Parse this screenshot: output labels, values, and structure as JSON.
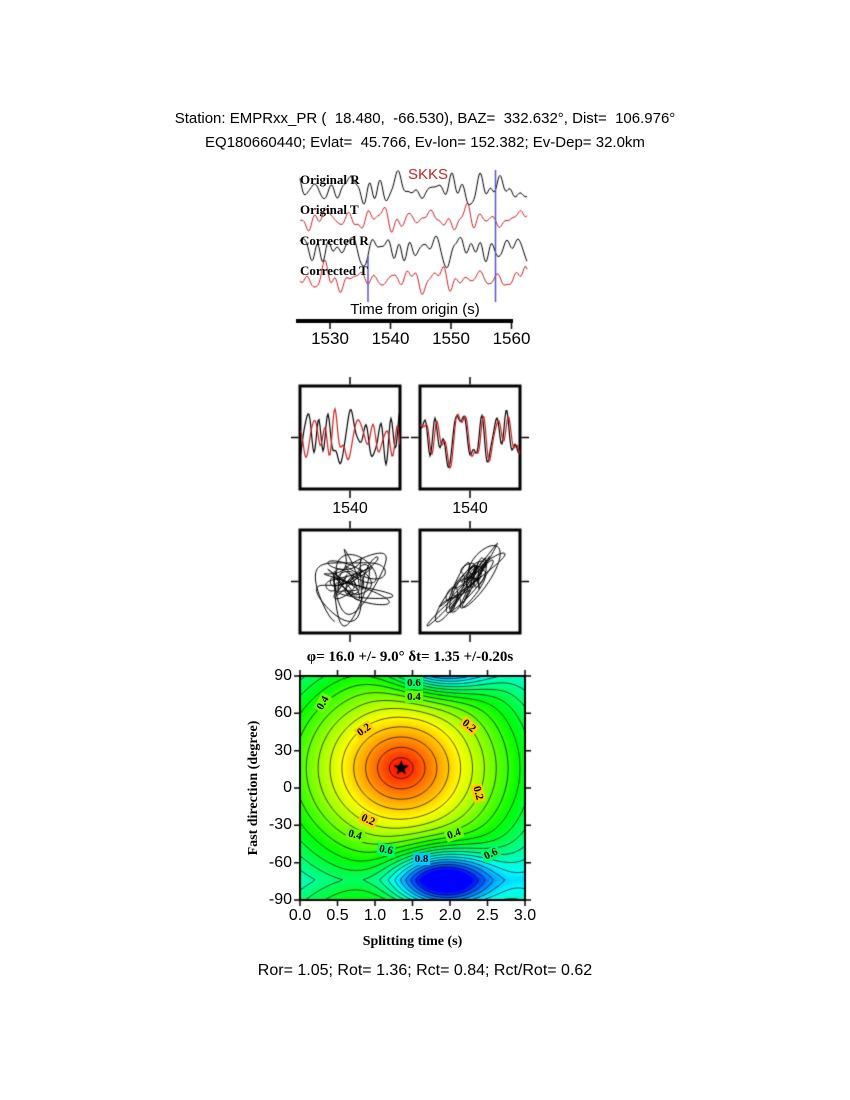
{
  "header": {
    "line1": "Station: EMPRxx_PR (  18.480,  -66.530), BAZ=  332.632°, Dist=  106.976°",
    "line2": "EQ180660440; Evlat=  45.766, Ev-lon= 152.382; Ev-Dep= 32.0km"
  },
  "phase_label": "SKKS",
  "trace_labels": [
    "Original R",
    "Original T",
    "Corrected R",
    "Corrected T"
  ],
  "time_axis": {
    "label": "Time from origin (s)",
    "ticks": [
      "1530",
      "1540",
      "1550",
      "1560"
    ]
  },
  "window_labels": [
    "1540",
    "1540"
  ],
  "contour": {
    "title": "φ= 16.0 +/- 9.0° δt= 1.35 +/-0.20s",
    "xlabel": "Splitting time (s)",
    "ylabel": "Fast direction (degree)",
    "x_ticks": [
      "0.0",
      "0.5",
      "1.0",
      "1.5",
      "2.0",
      "2.5",
      "3.0"
    ],
    "y_ticks": [
      "90",
      "60",
      "30",
      "0",
      "-30",
      "-60",
      "-90"
    ],
    "inline_labels": [
      {
        "text": "0.4",
        "x": 0.3,
        "phi": 68,
        "rot": -60
      },
      {
        "text": "0.6",
        "x": 1.52,
        "phi": 84,
        "rot": 0
      },
      {
        "text": "0.4",
        "x": 1.52,
        "phi": 73,
        "rot": 0
      },
      {
        "text": "0.2",
        "x": 0.85,
        "phi": 47,
        "rot": -35
      },
      {
        "text": "0.2",
        "x": 2.25,
        "phi": 50,
        "rot": 40
      },
      {
        "text": "0.2",
        "x": 0.9,
        "phi": -26,
        "rot": 25
      },
      {
        "text": "0.2",
        "x": 2.37,
        "phi": -4,
        "rot": 75
      },
      {
        "text": "0.4",
        "x": 0.73,
        "phi": -38,
        "rot": 15
      },
      {
        "text": "0.4",
        "x": 2.05,
        "phi": -37,
        "rot": -20
      },
      {
        "text": "0.6",
        "x": 1.15,
        "phi": -50,
        "rot": 10
      },
      {
        "text": "0.8",
        "x": 1.62,
        "phi": -57,
        "rot": 0
      },
      {
        "text": "0.6",
        "x": 2.55,
        "phi": -53,
        "rot": -25
      }
    ]
  },
  "stats_line": "Ror= 1.05; Rot= 1.36; Rct= 0.84; Rct/Rot= 0.62",
  "chart_data": [
    {
      "type": "line",
      "title": "Radial and transverse waveforms, original and corrected",
      "series": [
        {
          "name": "Original R",
          "color": "#000000"
        },
        {
          "name": "Original T",
          "color": "#cc2222"
        },
        {
          "name": "Corrected R",
          "color": "#000000"
        },
        {
          "name": "Corrected T",
          "color": "#cc2222"
        }
      ],
      "xlabel": "Time from origin (s)",
      "xlim": [
        1525,
        1563
      ],
      "x_ticks": [
        1530,
        1540,
        1550,
        1560
      ],
      "phase": "SKKS",
      "window_marker_times": [
        1536.3,
        1557.5
      ],
      "marker_color": "#5555cc"
    },
    {
      "type": "line",
      "title": "Fast/slow component pairs in the splitting window (left: original, right: corrected)",
      "panels": 2,
      "x_ticks": [
        1540
      ],
      "series_colors": [
        "#000000",
        "#cc2222"
      ]
    },
    {
      "type": "scatter",
      "title": "Particle motion before (left, elliptical) and after (right, linearized) correction",
      "panels": 2
    },
    {
      "type": "heatmap",
      "title": "Splitting parameter misfit surface",
      "xlabel": "Splitting time (s)",
      "ylabel": "Fast direction (degree)",
      "xlim": [
        0,
        3
      ],
      "ylim": [
        -90,
        90
      ],
      "x_ticks": [
        0.0,
        0.5,
        1.0,
        1.5,
        2.0,
        2.5,
        3.0
      ],
      "y_ticks": [
        90,
        60,
        30,
        0,
        -30,
        -60,
        -90
      ],
      "contour_levels_labeled": [
        0.2,
        0.4,
        0.6,
        0.8
      ],
      "best_solution": {
        "phi_deg": 16.0,
        "phi_err_deg": 9.0,
        "dt_s": 1.35,
        "dt_err_s": 0.2,
        "marker": "star"
      },
      "maximum_region": {
        "dt_s": 1.9,
        "phi_deg": -75
      },
      "colormap": "rainbow red(low) to blue(high)"
    },
    {
      "type": "table",
      "title": "Quality ratios",
      "values": {
        "Ror": 1.05,
        "Rot": 1.36,
        "Rct": 0.84,
        "Rct/Rot": 0.62
      }
    }
  ]
}
